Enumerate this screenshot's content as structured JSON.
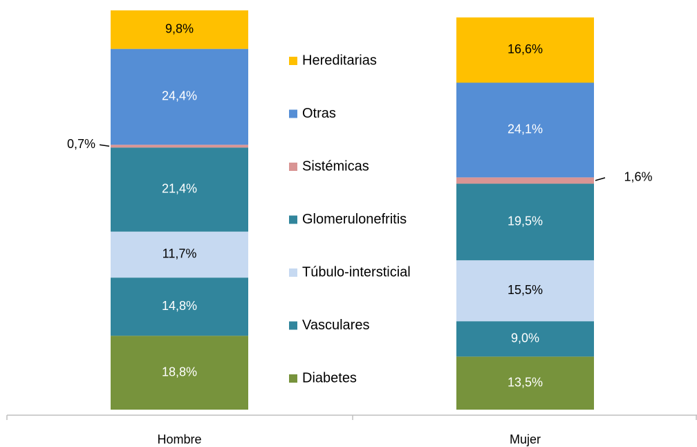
{
  "chart_data": {
    "type": "stacked_bar",
    "categories": [
      "Hombre",
      "Mujer"
    ],
    "series": [
      {
        "name": "Diabetes",
        "color": "#77933c",
        "values": [
          18.8,
          13.5
        ],
        "value_labels": [
          "18,8%",
          "13,5%"
        ]
      },
      {
        "name": "Vasculares",
        "color": "#31859c",
        "values": [
          14.8,
          9.0
        ],
        "value_labels": [
          "14,8%",
          "9,0%"
        ]
      },
      {
        "name": "Túbulo-intersticial",
        "color": "#c6d9f1",
        "values": [
          11.7,
          15.5
        ],
        "value_labels": [
          "11,7%",
          "15,5%"
        ]
      },
      {
        "name": "Glomerulonefritis",
        "color": "#31859c",
        "values": [
          21.4,
          19.5
        ],
        "value_labels": [
          "21,4%",
          "19,5%"
        ]
      },
      {
        "name": "Sistémicas",
        "color": "#d99594",
        "values": [
          0.7,
          1.6
        ],
        "value_labels": [
          "0,7%",
          "1,6%"
        ]
      },
      {
        "name": "Otras",
        "color": "#558ed5",
        "values": [
          24.4,
          24.1
        ],
        "value_labels": [
          "24,4%",
          "24,1%"
        ]
      },
      {
        "name": "Hereditarias",
        "color": "#ffc000",
        "values": [
          9.8,
          16.6
        ],
        "value_labels": [
          "9,8%",
          "16,6%"
        ]
      }
    ]
  }
}
